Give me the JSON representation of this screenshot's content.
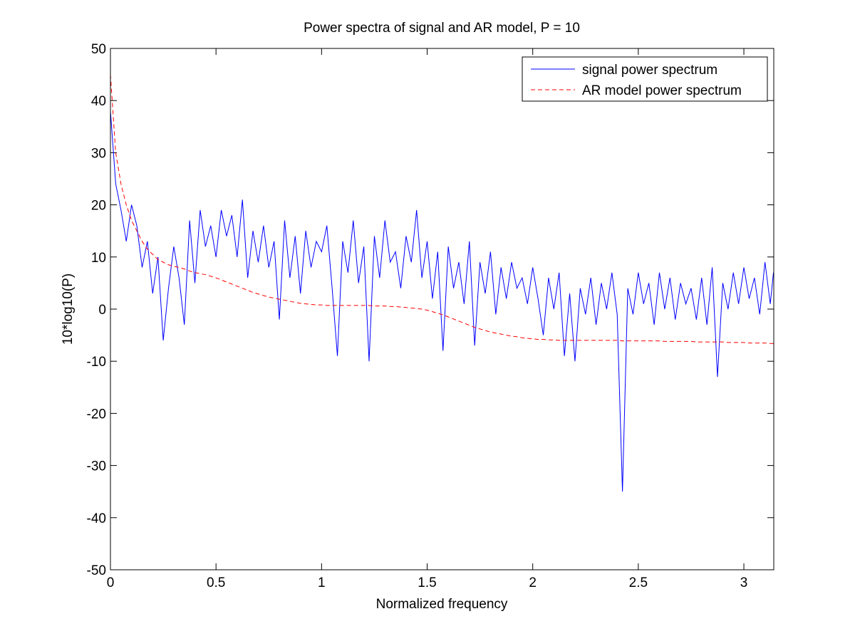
{
  "chart_data": {
    "type": "line",
    "title": "Power spectra of signal and AR model, P = 10",
    "xlabel": "Normalized frequency",
    "ylabel": "10*log10(P)",
    "xlim": [
      0,
      3.1416
    ],
    "ylim": [
      -50,
      50
    ],
    "xticks": [
      0,
      0.5,
      1,
      1.5,
      2,
      2.5,
      3
    ],
    "yticks": [
      -50,
      -40,
      -30,
      -20,
      -10,
      0,
      10,
      20,
      30,
      40,
      50
    ],
    "grid": false,
    "legend": "upper right",
    "x": [
      0,
      0.025,
      0.05,
      0.075,
      0.1,
      0.125,
      0.15,
      0.175,
      0.2,
      0.225,
      0.25,
      0.275,
      0.3,
      0.325,
      0.35,
      0.375,
      0.4,
      0.425,
      0.45,
      0.475,
      0.5,
      0.525,
      0.55,
      0.575,
      0.6,
      0.625,
      0.65,
      0.675,
      0.7,
      0.725,
      0.75,
      0.775,
      0.8,
      0.825,
      0.85,
      0.875,
      0.9,
      0.925,
      0.95,
      0.975,
      1.0,
      1.025,
      1.05,
      1.075,
      1.1,
      1.125,
      1.15,
      1.175,
      1.2,
      1.225,
      1.25,
      1.275,
      1.3,
      1.325,
      1.35,
      1.375,
      1.4,
      1.425,
      1.45,
      1.475,
      1.5,
      1.525,
      1.55,
      1.575,
      1.6,
      1.625,
      1.65,
      1.675,
      1.7,
      1.725,
      1.75,
      1.775,
      1.8,
      1.825,
      1.85,
      1.875,
      1.9,
      1.925,
      1.95,
      1.975,
      2.0,
      2.025,
      2.05,
      2.075,
      2.1,
      2.125,
      2.15,
      2.175,
      2.2,
      2.225,
      2.25,
      2.275,
      2.3,
      2.325,
      2.35,
      2.375,
      2.4,
      2.425,
      2.45,
      2.475,
      2.5,
      2.525,
      2.55,
      2.575,
      2.6,
      2.625,
      2.65,
      2.675,
      2.7,
      2.725,
      2.75,
      2.775,
      2.8,
      2.825,
      2.85,
      2.875,
      2.9,
      2.925,
      2.95,
      2.975,
      3.0,
      3.025,
      3.05,
      3.075,
      3.1,
      3.125,
      3.14
    ],
    "series": [
      {
        "name": "signal power spectrum",
        "color": "#0000ff",
        "dashed": false,
        "values": [
          38,
          24,
          19,
          13,
          20,
          16,
          8,
          13,
          3,
          10,
          -6,
          4,
          12,
          6,
          -3,
          17,
          5,
          19,
          12,
          16,
          10,
          19,
          14,
          18,
          10,
          21,
          6,
          15,
          9,
          16,
          8,
          13,
          -2,
          17,
          6,
          14,
          3,
          15,
          8,
          13,
          11,
          16,
          4,
          -9,
          13,
          7,
          17,
          5,
          12,
          -10,
          14,
          6,
          17,
          9,
          11,
          4,
          14,
          9,
          19,
          6,
          13,
          2,
          11,
          -8,
          12,
          4,
          9,
          1,
          13,
          -7,
          9,
          3,
          11,
          -1,
          8,
          2,
          9,
          4,
          6,
          1,
          8,
          2,
          -5,
          6,
          0,
          7,
          -9,
          3,
          -10,
          4,
          -1,
          6,
          -3,
          5,
          0,
          7,
          -1,
          -35,
          4,
          -1,
          7,
          1,
          5,
          -3,
          7,
          0,
          6,
          -2,
          5,
          1,
          4,
          -2,
          6,
          -3,
          8,
          -13,
          5,
          0,
          7,
          1,
          8,
          2,
          6,
          -1,
          9,
          1,
          7
        ]
      },
      {
        "name": "AR model power spectrum",
        "color": "#ff0000",
        "dashed": true,
        "values": [
          45,
          30,
          24,
          20,
          17,
          15,
          13,
          11.5,
          10.5,
          9.5,
          9,
          8.5,
          8.2,
          8,
          7.7,
          7.3,
          7,
          6.8,
          6.6,
          6.3,
          6,
          5.6,
          5.2,
          4.8,
          4.4,
          4,
          3.6,
          3.2,
          2.9,
          2.6,
          2.3,
          2.1,
          1.9,
          1.7,
          1.5,
          1.3,
          1.1,
          1,
          0.9,
          0.8,
          0.8,
          0.7,
          0.7,
          0.7,
          0.7,
          0.7,
          0.7,
          0.7,
          0.7,
          0.7,
          0.6,
          0.6,
          0.6,
          0.5,
          0.5,
          0.4,
          0.3,
          0.2,
          0.1,
          0,
          -0.2,
          -0.5,
          -0.8,
          -1.1,
          -1.5,
          -1.9,
          -2.3,
          -2.7,
          -3.1,
          -3.5,
          -3.8,
          -4.1,
          -4.4,
          -4.6,
          -4.8,
          -5,
          -5.2,
          -5.3,
          -5.5,
          -5.6,
          -5.7,
          -5.8,
          -5.8,
          -5.9,
          -5.9,
          -6,
          -6,
          -6,
          -6,
          -6,
          -6,
          -6,
          -6,
          -6,
          -6,
          -6,
          -6,
          -6.1,
          -6.1,
          -6.1,
          -6.1,
          -6.1,
          -6.1,
          -6.1,
          -6.1,
          -6.2,
          -6.2,
          -6.2,
          -6.2,
          -6.2,
          -6.2,
          -6.3,
          -6.3,
          -6.3,
          -6.3,
          -6.3,
          -6.3,
          -6.4,
          -6.4,
          -6.4,
          -6.4,
          -6.5,
          -6.5,
          -6.5,
          -6.5,
          -6.6,
          -6.6
        ]
      }
    ]
  }
}
